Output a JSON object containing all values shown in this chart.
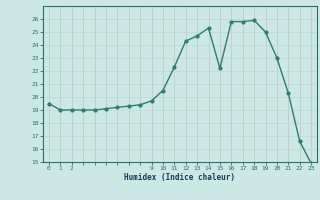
{
  "xlabel": "Humidex (Indice chaleur)",
  "x": [
    0,
    1,
    2,
    3,
    4,
    5,
    6,
    7,
    8,
    9,
    10,
    11,
    12,
    13,
    14,
    15,
    16,
    17,
    18,
    19,
    20,
    21,
    22,
    23
  ],
  "y": [
    19.5,
    19.0,
    19.0,
    19.0,
    19.0,
    19.1,
    19.2,
    19.3,
    19.4,
    19.7,
    20.5,
    22.3,
    24.3,
    24.7,
    25.3,
    22.2,
    25.8,
    25.8,
    25.9,
    25.0,
    23.0,
    20.3,
    16.6,
    14.9
  ],
  "line_color": "#2e7d6e",
  "bg_color": "#cce8e4",
  "grid_color_minor": "#bfd8d4",
  "grid_color_major": "#c9aba8",
  "ylim": [
    15,
    27
  ],
  "yticks": [
    15,
    16,
    17,
    18,
    19,
    20,
    21,
    22,
    23,
    24,
    25,
    26
  ],
  "xtick_labels_show": [
    0,
    1,
    2,
    9,
    10,
    11,
    12,
    13,
    14,
    15,
    16,
    17,
    18,
    19,
    20,
    21,
    22,
    23
  ],
  "axis_color": "#2e6e6e",
  "tick_color": "#2e6e6e",
  "label_color": "#1a3a5a",
  "marker": "o",
  "markersize": 2.0,
  "linewidth": 1.0
}
